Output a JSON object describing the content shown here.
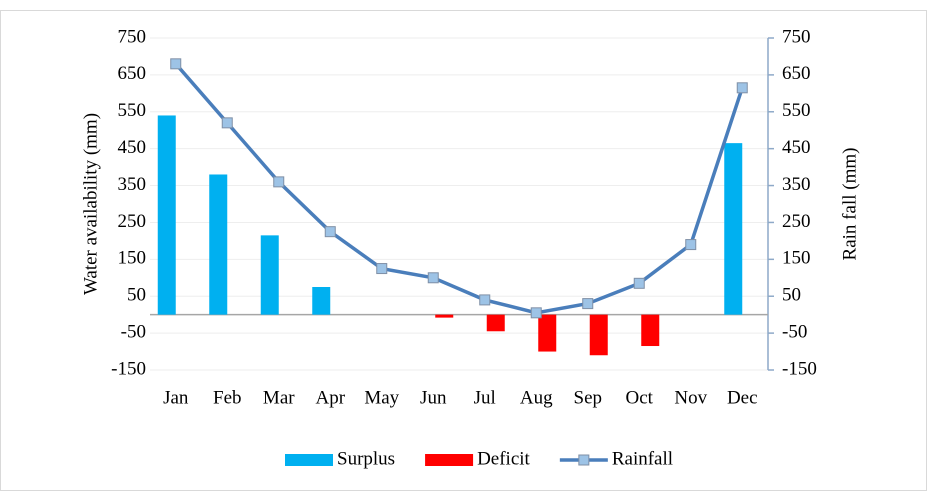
{
  "chart_data": {
    "type": "bar",
    "y_label": "Water availability (mm)",
    "y2_label": "Rain fall (mm)",
    "categories": [
      "Jan",
      "Feb",
      "Mar",
      "Apr",
      "May",
      "Jun",
      "Jul",
      "Aug",
      "Sep",
      "Oct",
      "Nov",
      "Dec"
    ],
    "series": [
      {
        "name": "Surplus",
        "color": "#00b0f0",
        "type": "bar",
        "values": [
          540,
          380,
          215,
          75,
          0,
          0,
          0,
          0,
          0,
          0,
          0,
          465
        ]
      },
      {
        "name": "Deficit",
        "color": "#ff0000",
        "type": "bar",
        "values": [
          0,
          0,
          0,
          0,
          0,
          -8,
          -45,
          -100,
          -110,
          -85,
          0,
          0
        ]
      },
      {
        "name": "Rainfall",
        "color": "#4a7ebb",
        "type": "line",
        "axis": "y2",
        "values": [
          680,
          520,
          360,
          225,
          125,
          100,
          40,
          5,
          30,
          85,
          190,
          615
        ]
      }
    ],
    "ylim": [
      -150,
      750
    ],
    "yticks": [
      -150,
      -50,
      50,
      150,
      250,
      350,
      450,
      550,
      650,
      750
    ],
    "y2lim": [
      -150,
      750
    ],
    "y2ticks": [
      -150,
      -50,
      50,
      150,
      250,
      350,
      450,
      550,
      650,
      750
    ],
    "grid": true,
    "legend": "bottom"
  }
}
